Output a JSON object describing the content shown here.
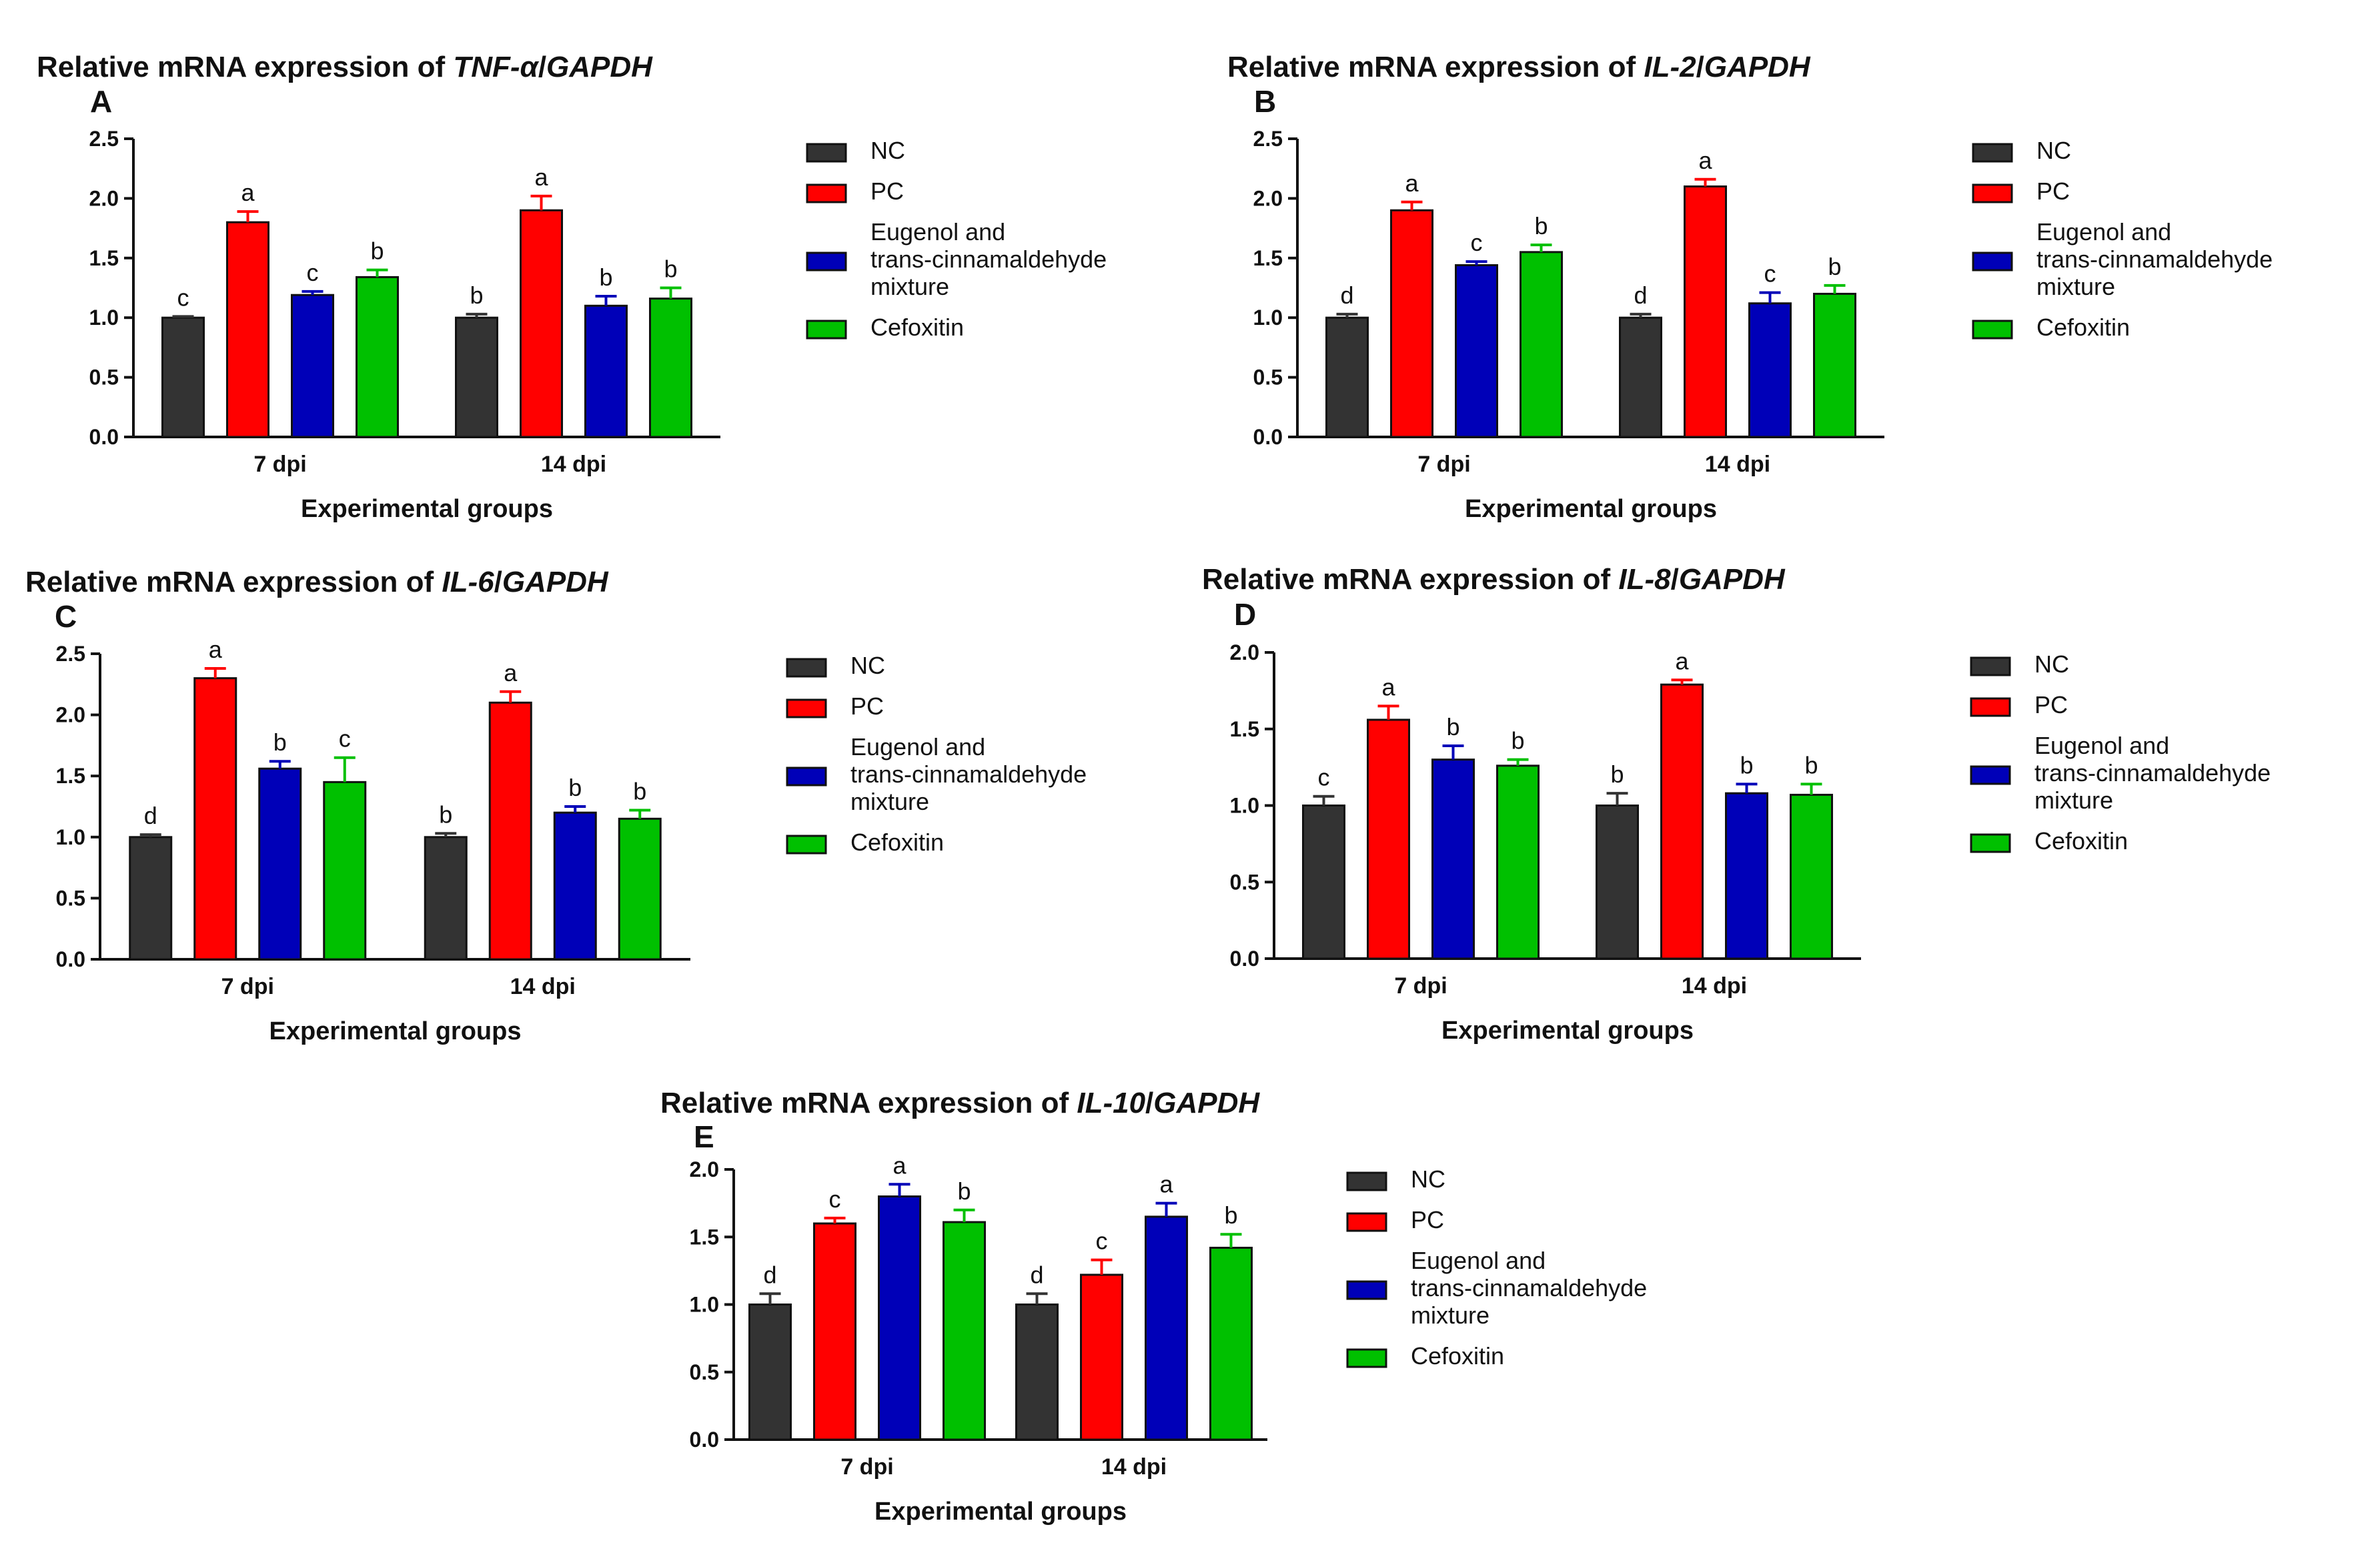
{
  "colors": {
    "NC": "#333333",
    "PC": "#ff0000",
    "Eugenol and trans-cinnamaldehyde mixture": "#0000b8",
    "Cefoxitin": "#00c000"
  },
  "legend": {
    "items": [
      {
        "label_lines": [
          "NC"
        ],
        "color": "#333333"
      },
      {
        "label_lines": [
          "PC"
        ],
        "color": "#ff0000"
      },
      {
        "label_lines": [
          "Eugenol and",
          "trans-cinnamaldehyde",
          "mixture"
        ],
        "color": "#0000b8"
      },
      {
        "label_lines": [
          "Cefoxitin"
        ],
        "color": "#00c000"
      }
    ]
  },
  "chart_data": [
    {
      "panel": "A",
      "type": "bar",
      "title": "Relative mRNA expression of TNF-α/GAPDH",
      "title_plain": "Relative mRNA expression of ",
      "title_gene": "TNF-α",
      "title_ref": "GAPDH",
      "xlabel": "Experimental groups",
      "ylabel": "",
      "ylim": [
        0,
        2.5
      ],
      "yticks": [
        "0.0",
        "0.5",
        "1.0",
        "1.5",
        "2.0",
        "2.5"
      ],
      "categories": [
        "7 dpi",
        "14 dpi"
      ],
      "series": [
        {
          "name": "NC",
          "values": [
            1.0,
            1.0
          ],
          "errors": [
            0.01,
            0.03
          ],
          "letters": [
            "c",
            "b"
          ]
        },
        {
          "name": "PC",
          "values": [
            1.8,
            1.9
          ],
          "errors": [
            0.09,
            0.12
          ],
          "letters": [
            "a",
            "a"
          ]
        },
        {
          "name": "Eugenol and trans-cinnamaldehyde mixture",
          "values": [
            1.19,
            1.1
          ],
          "errors": [
            0.03,
            0.08
          ],
          "letters": [
            "c",
            "b"
          ]
        },
        {
          "name": "Cefoxitin",
          "values": [
            1.34,
            1.16
          ],
          "errors": [
            0.06,
            0.09
          ],
          "letters": [
            "b",
            "b"
          ]
        }
      ]
    },
    {
      "panel": "B",
      "type": "bar",
      "title": "Relative mRNA expression of IL-2/GAPDH",
      "title_plain": "Relative mRNA expression of ",
      "title_gene": "IL-2",
      "title_ref": "GAPDH",
      "xlabel": "Experimental groups",
      "ylabel": "",
      "ylim": [
        0,
        2.5
      ],
      "yticks": [
        "0.0",
        "0.5",
        "1.0",
        "1.5",
        "2.0",
        "2.5"
      ],
      "categories": [
        "7 dpi",
        "14 dpi"
      ],
      "series": [
        {
          "name": "NC",
          "values": [
            1.0,
            1.0
          ],
          "errors": [
            0.03,
            0.03
          ],
          "letters": [
            "d",
            "d"
          ]
        },
        {
          "name": "PC",
          "values": [
            1.9,
            2.1
          ],
          "errors": [
            0.07,
            0.06
          ],
          "letters": [
            "a",
            "a"
          ]
        },
        {
          "name": "Eugenol and trans-cinnamaldehyde mixture",
          "values": [
            1.44,
            1.12
          ],
          "errors": [
            0.03,
            0.09
          ],
          "letters": [
            "c",
            "c"
          ]
        },
        {
          "name": "Cefoxitin",
          "values": [
            1.55,
            1.2
          ],
          "errors": [
            0.06,
            0.07
          ],
          "letters": [
            "b",
            "b"
          ]
        }
      ]
    },
    {
      "panel": "C",
      "type": "bar",
      "title": "Relative mRNA expression of IL-6/GAPDH",
      "title_plain": "Relative mRNA expression of ",
      "title_gene": "IL-6",
      "title_ref": "GAPDH",
      "xlabel": "Experimental groups",
      "ylabel": "",
      "ylim": [
        0,
        2.5
      ],
      "yticks": [
        "0.0",
        "0.5",
        "1.0",
        "1.5",
        "2.0",
        "2.5"
      ],
      "categories": [
        "7 dpi",
        "14 dpi"
      ],
      "series": [
        {
          "name": "NC",
          "values": [
            1.0,
            1.0
          ],
          "errors": [
            0.02,
            0.03
          ],
          "letters": [
            "d",
            "b"
          ]
        },
        {
          "name": "PC",
          "values": [
            2.3,
            2.1
          ],
          "errors": [
            0.08,
            0.09
          ],
          "letters": [
            "a",
            "a"
          ]
        },
        {
          "name": "Eugenol and trans-cinnamaldehyde mixture",
          "values": [
            1.56,
            1.2
          ],
          "errors": [
            0.06,
            0.05
          ],
          "letters": [
            "b",
            "b"
          ]
        },
        {
          "name": "Cefoxitin",
          "values": [
            1.45,
            1.15
          ],
          "errors": [
            0.2,
            0.07
          ],
          "letters": [
            "c",
            "b"
          ]
        }
      ]
    },
    {
      "panel": "D",
      "type": "bar",
      "title": "Relative mRNA expression of IL-8/GAPDH",
      "title_plain": "Relative mRNA expression of ",
      "title_gene": "IL-8",
      "title_ref": "GAPDH",
      "xlabel": "Experimental groups",
      "ylabel": "",
      "ylim": [
        0,
        2.0
      ],
      "yticks": [
        "0.0",
        "0.5",
        "1.0",
        "1.5",
        "2.0"
      ],
      "categories": [
        "7 dpi",
        "14 dpi"
      ],
      "series": [
        {
          "name": "NC",
          "values": [
            1.0,
            1.0
          ],
          "errors": [
            0.06,
            0.08
          ],
          "letters": [
            "c",
            "b"
          ]
        },
        {
          "name": "PC",
          "values": [
            1.56,
            1.79
          ],
          "errors": [
            0.09,
            0.03
          ],
          "letters": [
            "a",
            "a"
          ]
        },
        {
          "name": "Eugenol and trans-cinnamaldehyde mixture",
          "values": [
            1.3,
            1.08
          ],
          "errors": [
            0.09,
            0.06
          ],
          "letters": [
            "b",
            "b"
          ]
        },
        {
          "name": "Cefoxitin",
          "values": [
            1.26,
            1.07
          ],
          "errors": [
            0.04,
            0.07
          ],
          "letters": [
            "b",
            "b"
          ]
        }
      ]
    },
    {
      "panel": "E",
      "type": "bar",
      "title": "Relative mRNA expression of IL-10/GAPDH",
      "title_plain": "Relative mRNA expression of ",
      "title_gene": "IL-10",
      "title_ref": "GAPDH",
      "xlabel": "Experimental groups",
      "ylabel": "",
      "ylim": [
        0,
        2.0
      ],
      "yticks": [
        "0.0",
        "0.5",
        "1.0",
        "1.5",
        "2.0"
      ],
      "categories": [
        "7 dpi",
        "14 dpi"
      ],
      "series": [
        {
          "name": "NC",
          "values": [
            1.0,
            1.0
          ],
          "errors": [
            0.08,
            0.08
          ],
          "letters": [
            "d",
            "d"
          ]
        },
        {
          "name": "PC",
          "values": [
            1.6,
            1.22
          ],
          "errors": [
            0.04,
            0.11
          ],
          "letters": [
            "c",
            "c"
          ]
        },
        {
          "name": "Eugenol and trans-cinnamaldehyde mixture",
          "values": [
            1.8,
            1.65
          ],
          "errors": [
            0.09,
            0.1
          ],
          "letters": [
            "a",
            "a"
          ]
        },
        {
          "name": "Cefoxitin",
          "values": [
            1.61,
            1.42
          ],
          "errors": [
            0.09,
            0.1
          ],
          "letters": [
            "b",
            "b"
          ]
        }
      ]
    }
  ]
}
